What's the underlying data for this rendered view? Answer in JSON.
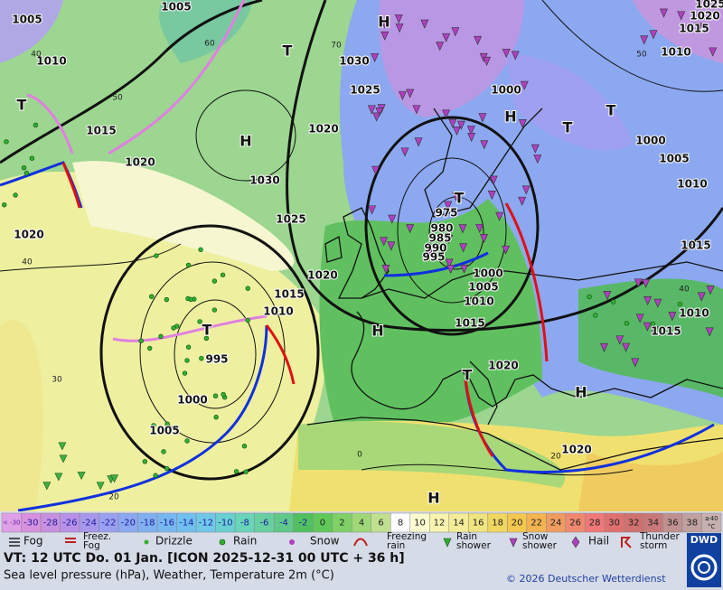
{
  "map": {
    "pressure_labels": [
      "1005",
      "1005",
      "1010",
      "1015",
      "1020",
      "1020",
      "1030",
      "1025",
      "1020",
      "1020",
      "1030",
      "1025",
      "1015",
      "1010",
      "995",
      "1000",
      "1005",
      "975",
      "980",
      "985",
      "990",
      "995",
      "1000",
      "1005",
      "1010",
      "1015",
      "1020",
      "1000",
      "1020",
      "1000",
      "1005",
      "1010",
      "1015",
      "1010",
      "1015",
      "1010",
      "1015",
      "1020",
      "1025"
    ],
    "pressure_centers": [
      "H",
      "H",
      "H",
      "H",
      "H",
      "H",
      "T",
      "T",
      "T",
      "T",
      "T",
      "T",
      "T"
    ],
    "temperature_labels": [
      "40",
      "50",
      "60",
      "70",
      "40",
      "30",
      "20",
      "0",
      "40",
      "50",
      "20"
    ]
  },
  "legend": {
    "temperature": {
      "low_label": "< -30",
      "values": [
        -30,
        -28,
        -26,
        -24,
        -22,
        -20,
        -18,
        -16,
        -14,
        -12,
        -10,
        -8,
        -6,
        -4,
        -2,
        0,
        2,
        4,
        6,
        8,
        10,
        12,
        14,
        16,
        18,
        20,
        22,
        24,
        26,
        28,
        30,
        32,
        34,
        36,
        38
      ],
      "high_label": [
        "≥40",
        "°C"
      ],
      "colors": [
        "#e0a0e8",
        "#d890e0",
        "#c890e0",
        "#b890e8",
        "#a898ec",
        "#9aa0f0",
        "#8ca8f0",
        "#80b0f0",
        "#78b8f0",
        "#70c0f0",
        "#70c8e8",
        "#68d0d0",
        "#68d4b8",
        "#68d0a0",
        "#60c888",
        "#50c060",
        "#60c858",
        "#80d068",
        "#a0d878",
        "#c0e090",
        "#ffffff",
        "#fcfcd0",
        "#f8f4b0",
        "#f4ec98",
        "#f0e480",
        "#f0d860",
        "#f4c850",
        "#f4b450",
        "#f09c60",
        "#f08870",
        "#f07878",
        "#e07070",
        "#d07070",
        "#c87878",
        "#c09090",
        "#c0a0a0",
        "#c8b0b0"
      ]
    },
    "weather": [
      [
        "Fog"
      ],
      [
        "Freez.",
        "Fog"
      ],
      [
        "Drizzle"
      ],
      [
        "Rain"
      ],
      [
        "Snow"
      ],
      [
        "Freezing",
        "rain"
      ],
      [
        "Rain",
        "shower"
      ],
      [
        "Snow",
        "shower"
      ],
      [
        "Hail"
      ],
      [
        "Thunder",
        "storm"
      ]
    ]
  },
  "footer": {
    "valid_time": "VT: 12 UTC Do.  01 Jan. [ICON 2025-12-31  00 UTC + 36 h]",
    "description": "Sea level pressure (hPa), Weather, Temperature 2m (°C)",
    "copyright": "© 2026 Deutscher Wetterdienst",
    "logo": "DWD"
  }
}
